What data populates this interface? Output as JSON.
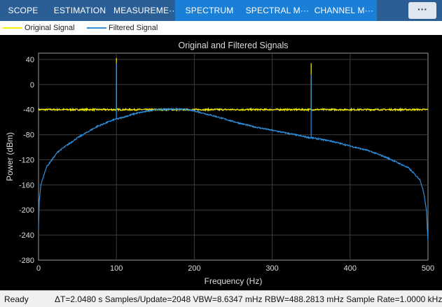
{
  "toolbar": {
    "tabs": [
      "SCOPE",
      "ESTIMATION",
      "MEASUREME···",
      "SPECTRUM",
      "SPECTRAL M···",
      "CHANNEL M···"
    ],
    "more_label": "···"
  },
  "legend": {
    "items": [
      "Original Signal",
      "Filtered Signal"
    ]
  },
  "colors": {
    "original": "#f5f000",
    "filtered": "#2e8fde",
    "toolbar": "#2b5e95",
    "toolbar_active": "#1a7fd7"
  },
  "plot": {
    "title": "Original and Filtered Signals",
    "xlabel": "Frequency (Hz)",
    "ylabel": "Power (dBm)"
  },
  "chart_data": {
    "type": "line",
    "title": "Original and Filtered Signals",
    "xlabel": "Frequency (Hz)",
    "ylabel": "Power (dBm)",
    "xlim": [
      0,
      500
    ],
    "ylim": [
      -280,
      50
    ],
    "xticks": [
      0,
      100,
      200,
      300,
      400,
      500
    ],
    "yticks": [
      40,
      0,
      -40,
      -80,
      -120,
      -160,
      -200,
      -240,
      -280
    ],
    "grid": true,
    "legend_position": "top",
    "series": [
      {
        "name": "Original Signal",
        "x": [
          0,
          99,
          100,
          101,
          349,
          350,
          351,
          500
        ],
        "y": [
          -40,
          -40,
          42,
          -40,
          -40,
          34,
          -40,
          -40
        ]
      },
      {
        "name": "Filtered Signal",
        "x": [
          0,
          1,
          3,
          10,
          25,
          50,
          75,
          99,
          100,
          101,
          125,
          150,
          175,
          190,
          200,
          225,
          250,
          275,
          300,
          325,
          349,
          350,
          351,
          375,
          400,
          425,
          450,
          475,
          490,
          495,
          498,
          500
        ],
        "y": [
          -230,
          -185,
          -160,
          -132,
          -107,
          -85,
          -67,
          -55,
          34,
          -55,
          -46,
          -40,
          -39,
          -40,
          -42,
          -50,
          -59,
          -67,
          -73,
          -79,
          -85,
          16,
          -85,
          -90,
          -98,
          -106,
          -118,
          -133,
          -152,
          -175,
          -200,
          -250
        ]
      }
    ]
  },
  "status": {
    "ready": "Ready",
    "stats": "ΔT=2.0480 s  Samples/Update=2048  VBW=8.6347 mHz  RBW=488.2813 mHz  Sample Rate=1.0000 kHz"
  }
}
